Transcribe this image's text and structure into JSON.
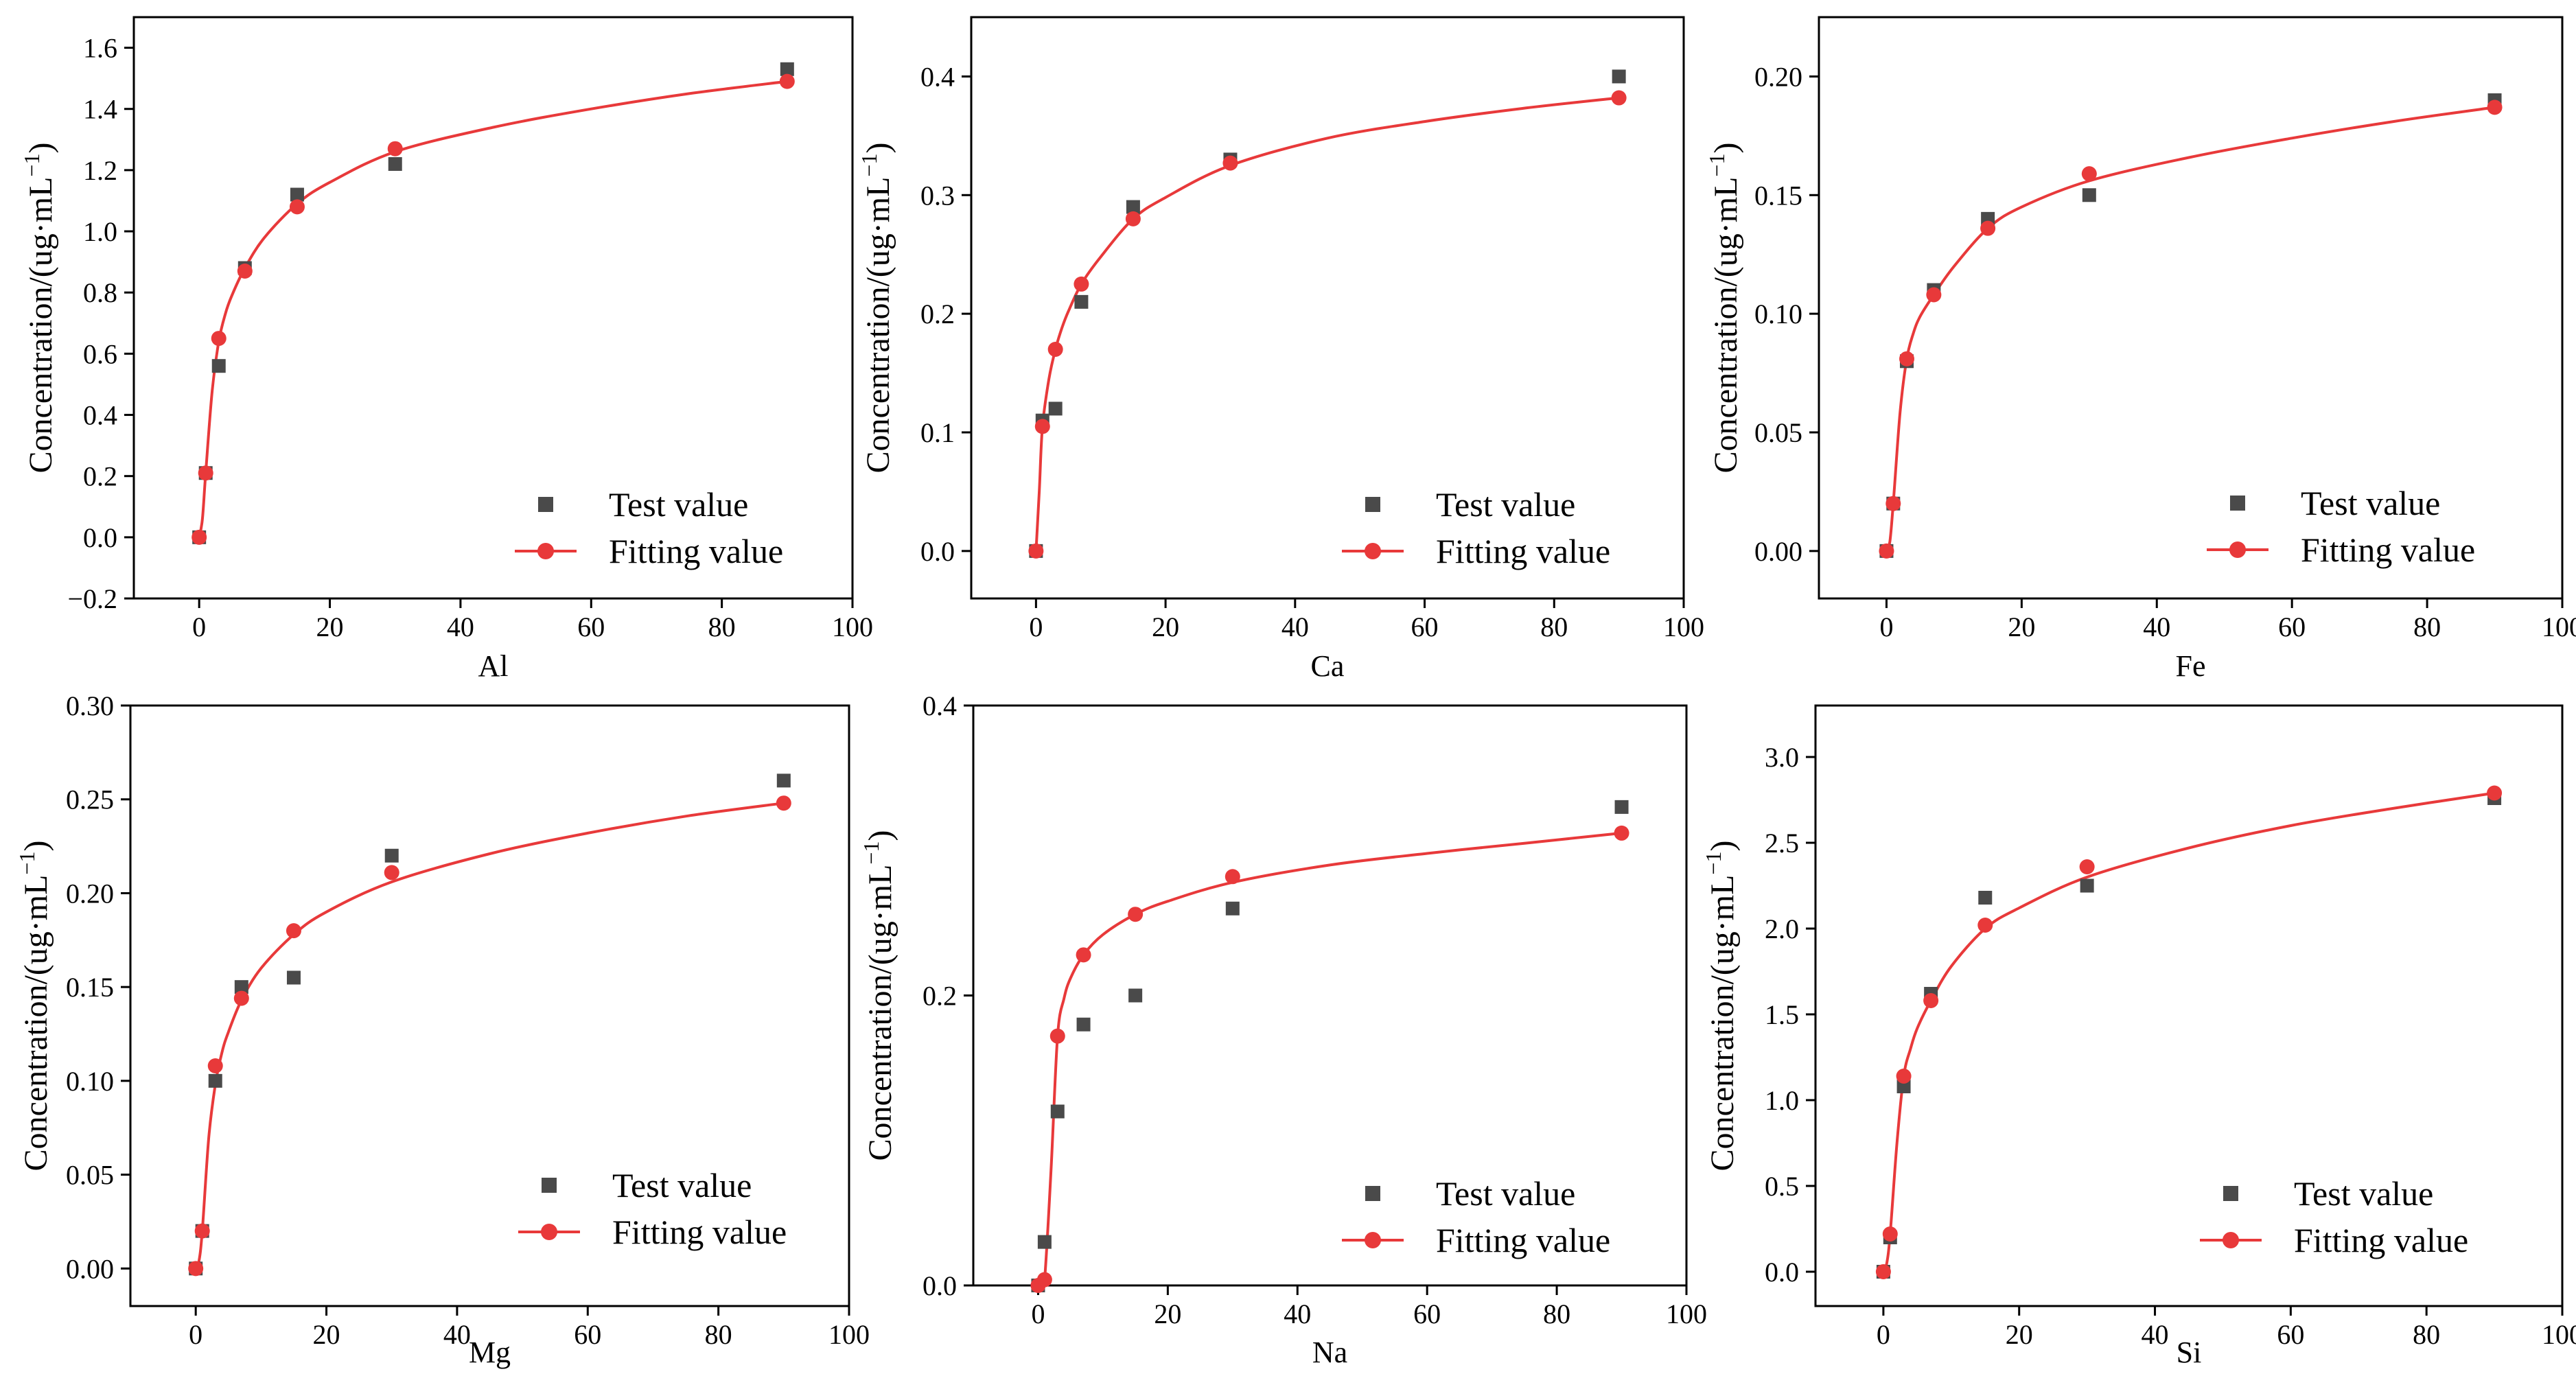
{
  "figure": {
    "legend": {
      "test_label": "Test value",
      "fit_label": "Fitting value"
    },
    "ylabel": "Concentration/(ug·mL",
    "ylabel_exponent": "−1",
    "ylabel_close": ")",
    "colors": {
      "test": "#4a4a4a",
      "fit": "#e8393a",
      "axis": "#000000"
    }
  },
  "chart_data": [
    {
      "type": "scatter",
      "element": "Al",
      "xlabel": "Al",
      "ylabel": "Concentration/(ug·mL−1)",
      "xlim": [
        -10,
        100
      ],
      "ylim": [
        -0.2,
        1.7
      ],
      "xticks": [
        0,
        20,
        40,
        60,
        80,
        100
      ],
      "yticks": [
        -0.2,
        0.0,
        0.2,
        0.4,
        0.6,
        0.8,
        1.0,
        1.2,
        1.4,
        1.6
      ],
      "ytick_labels": [
        "−0.2",
        "0.0",
        "0.2",
        "0.4",
        "0.6",
        "0.8",
        "1.0",
        "1.2",
        "1.4",
        "1.6"
      ],
      "legend_position": "bottom-right",
      "series": [
        {
          "name": "Test value",
          "marker": "square",
          "x": [
            0,
            1,
            3,
            7,
            15,
            30,
            90
          ],
          "y": [
            0.0,
            0.21,
            0.56,
            0.88,
            1.12,
            1.22,
            1.53
          ]
        },
        {
          "name": "Fitting value",
          "marker": "circle",
          "x": [
            0,
            1,
            3,
            7,
            15,
            30,
            90
          ],
          "y": [
            0.0,
            0.21,
            0.65,
            0.87,
            1.08,
            1.27,
            1.49
          ]
        }
      ],
      "curve": {
        "x": [
          0,
          0.5,
          1,
          2,
          3,
          4,
          5,
          7,
          10,
          15,
          20,
          30,
          45,
          60,
          75,
          90
        ],
        "y": [
          0.0,
          0.06,
          0.21,
          0.48,
          0.64,
          0.73,
          0.79,
          0.88,
          0.98,
          1.09,
          1.16,
          1.26,
          1.34,
          1.4,
          1.45,
          1.49
        ]
      }
    },
    {
      "type": "scatter",
      "element": "Ca",
      "xlabel": "Ca",
      "ylabel": "Concentration/(ug·mL−1)",
      "xlim": [
        -10,
        100
      ],
      "ylim": [
        -0.04,
        0.45
      ],
      "xticks": [
        0,
        20,
        40,
        60,
        80,
        100
      ],
      "yticks": [
        0.0,
        0.1,
        0.2,
        0.3,
        0.4
      ],
      "ytick_labels": [
        "0.0",
        "0.1",
        "0.2",
        "0.3",
        "0.4"
      ],
      "legend_position": "bottom-right",
      "series": [
        {
          "name": "Test value",
          "marker": "square",
          "x": [
            0,
            1,
            3,
            7,
            15,
            30,
            90
          ],
          "y": [
            0.0,
            0.11,
            0.12,
            0.21,
            0.29,
            0.33,
            0.4
          ]
        },
        {
          "name": "Fitting value",
          "marker": "circle",
          "x": [
            0,
            1,
            3,
            7,
            15,
            30,
            90
          ],
          "y": [
            0.0,
            0.105,
            0.17,
            0.225,
            0.28,
            0.327,
            0.382
          ]
        }
      ],
      "curve": {
        "x": [
          0,
          0.5,
          1,
          2,
          3,
          4,
          5,
          7,
          10,
          15,
          20,
          30,
          45,
          60,
          75,
          90
        ],
        "y": [
          0.0,
          0.05,
          0.105,
          0.145,
          0.17,
          0.188,
          0.202,
          0.225,
          0.248,
          0.28,
          0.298,
          0.325,
          0.348,
          0.362,
          0.373,
          0.382
        ]
      }
    },
    {
      "type": "scatter",
      "element": "Fe",
      "xlabel": "Fe",
      "ylabel": "Concentration/(ug·mL−1)",
      "xlim": [
        -10,
        100
      ],
      "ylim": [
        -0.02,
        0.225
      ],
      "xticks": [
        0,
        20,
        40,
        60,
        80,
        100
      ],
      "yticks": [
        0.0,
        0.05,
        0.1,
        0.15,
        0.2
      ],
      "ytick_labels": [
        "0.00",
        "0.05",
        "0.10",
        "0.15",
        "0.20"
      ],
      "legend_position": "bottom-right",
      "series": [
        {
          "name": "Test value",
          "marker": "square",
          "x": [
            0,
            1,
            3,
            7,
            15,
            30,
            90
          ],
          "y": [
            0.0,
            0.02,
            0.08,
            0.11,
            0.14,
            0.15,
            0.19
          ]
        },
        {
          "name": "Fitting value",
          "marker": "circle",
          "x": [
            0,
            1,
            3,
            7,
            15,
            30,
            90
          ],
          "y": [
            0.0,
            0.02,
            0.081,
            0.108,
            0.136,
            0.159,
            0.187
          ]
        }
      ],
      "curve": {
        "x": [
          0,
          0.5,
          1,
          2,
          3,
          4,
          5,
          7,
          10,
          15,
          20,
          30,
          45,
          60,
          75,
          90
        ],
        "y": [
          0.0,
          0.004,
          0.02,
          0.058,
          0.081,
          0.092,
          0.099,
          0.108,
          0.12,
          0.136,
          0.145,
          0.156,
          0.166,
          0.174,
          0.181,
          0.187
        ]
      }
    },
    {
      "type": "scatter",
      "element": "Mg",
      "xlabel": "Mg",
      "ylabel": "Concentration/(ug·mL−1)",
      "xlim": [
        -10,
        100
      ],
      "ylim": [
        -0.02,
        0.3
      ],
      "xticks": [
        0,
        20,
        40,
        60,
        80,
        100
      ],
      "yticks": [
        0.0,
        0.05,
        0.1,
        0.15,
        0.2,
        0.25,
        0.3
      ],
      "ytick_labels": [
        "0.00",
        "0.05",
        "0.10",
        "0.15",
        "0.20",
        "0.25",
        "0.30"
      ],
      "legend_position": "bottom-right",
      "series": [
        {
          "name": "Test value",
          "marker": "square",
          "x": [
            0,
            1,
            3,
            7,
            15,
            30,
            90
          ],
          "y": [
            0.0,
            0.02,
            0.1,
            0.15,
            0.155,
            0.22,
            0.26
          ]
        },
        {
          "name": "Fitting value",
          "marker": "circle",
          "x": [
            0,
            1,
            3,
            7,
            15,
            30,
            90
          ],
          "y": [
            0.0,
            0.02,
            0.108,
            0.144,
            0.18,
            0.211,
            0.248
          ]
        }
      ],
      "curve": {
        "x": [
          0,
          0.5,
          1,
          2,
          3,
          4,
          5,
          7,
          10,
          15,
          20,
          30,
          45,
          60,
          75,
          90
        ],
        "y": [
          0.0,
          0.004,
          0.02,
          0.07,
          0.098,
          0.115,
          0.126,
          0.143,
          0.16,
          0.178,
          0.19,
          0.206,
          0.221,
          0.232,
          0.241,
          0.248
        ]
      }
    },
    {
      "type": "scatter",
      "element": "Na",
      "xlabel": "Na",
      "ylabel": "Concentration/(ug·mL−1)",
      "xlim": [
        -10,
        100
      ],
      "ylim": [
        0.0,
        0.4
      ],
      "xticks": [
        0,
        20,
        40,
        60,
        80,
        100
      ],
      "yticks": [
        0.0,
        0.2,
        0.4
      ],
      "ytick_labels": [
        "0.0",
        "0.2",
        "0.4"
      ],
      "legend_position": "bottom-right",
      "series": [
        {
          "name": "Test value",
          "marker": "square",
          "x": [
            0,
            1,
            3,
            7,
            15,
            30,
            90
          ],
          "y": [
            0.0,
            0.03,
            0.12,
            0.18,
            0.2,
            0.26,
            0.33
          ]
        },
        {
          "name": "Fitting value",
          "marker": "circle",
          "x": [
            0,
            1,
            3,
            7,
            15,
            30,
            90
          ],
          "y": [
            0.0,
            0.004,
            0.172,
            0.228,
            0.256,
            0.282,
            0.312
          ]
        }
      ],
      "curve": {
        "x": [
          0,
          0.5,
          1,
          2,
          3,
          4,
          5,
          7,
          10,
          15,
          20,
          30,
          45,
          60,
          75,
          90
        ],
        "y": [
          0.0,
          0.0,
          0.004,
          0.08,
          0.172,
          0.198,
          0.212,
          0.228,
          0.242,
          0.256,
          0.265,
          0.278,
          0.29,
          0.298,
          0.305,
          0.312
        ]
      }
    },
    {
      "type": "scatter",
      "element": "Si",
      "xlabel": "Si",
      "ylabel": "Concentration/(ug·mL−1)",
      "xlim": [
        -10,
        100
      ],
      "ylim": [
        -0.2,
        3.3
      ],
      "xticks": [
        0,
        20,
        40,
        60,
        80,
        100
      ],
      "yticks": [
        0.0,
        0.5,
        1.0,
        1.5,
        2.0,
        2.5,
        3.0
      ],
      "ytick_labels": [
        "0.0",
        "0.5",
        "1.0",
        "1.5",
        "2.0",
        "2.5",
        "3.0"
      ],
      "legend_position": "bottom-right",
      "series": [
        {
          "name": "Test value",
          "marker": "square",
          "x": [
            0,
            1,
            3,
            7,
            15,
            30,
            90
          ],
          "y": [
            0.0,
            0.2,
            1.08,
            1.62,
            2.18,
            2.25,
            2.76
          ]
        },
        {
          "name": "Fitting value",
          "marker": "circle",
          "x": [
            0,
            1,
            3,
            7,
            15,
            30,
            90
          ],
          "y": [
            0.0,
            0.22,
            1.14,
            1.58,
            2.02,
            2.36,
            2.79
          ]
        }
      ],
      "curve": {
        "x": [
          0,
          0.5,
          1,
          2,
          3,
          4,
          5,
          7,
          10,
          15,
          20,
          30,
          45,
          60,
          75,
          90
        ],
        "y": [
          0.0,
          0.05,
          0.22,
          0.75,
          1.14,
          1.3,
          1.42,
          1.58,
          1.78,
          2.0,
          2.12,
          2.3,
          2.47,
          2.6,
          2.7,
          2.79
        ]
      }
    }
  ]
}
